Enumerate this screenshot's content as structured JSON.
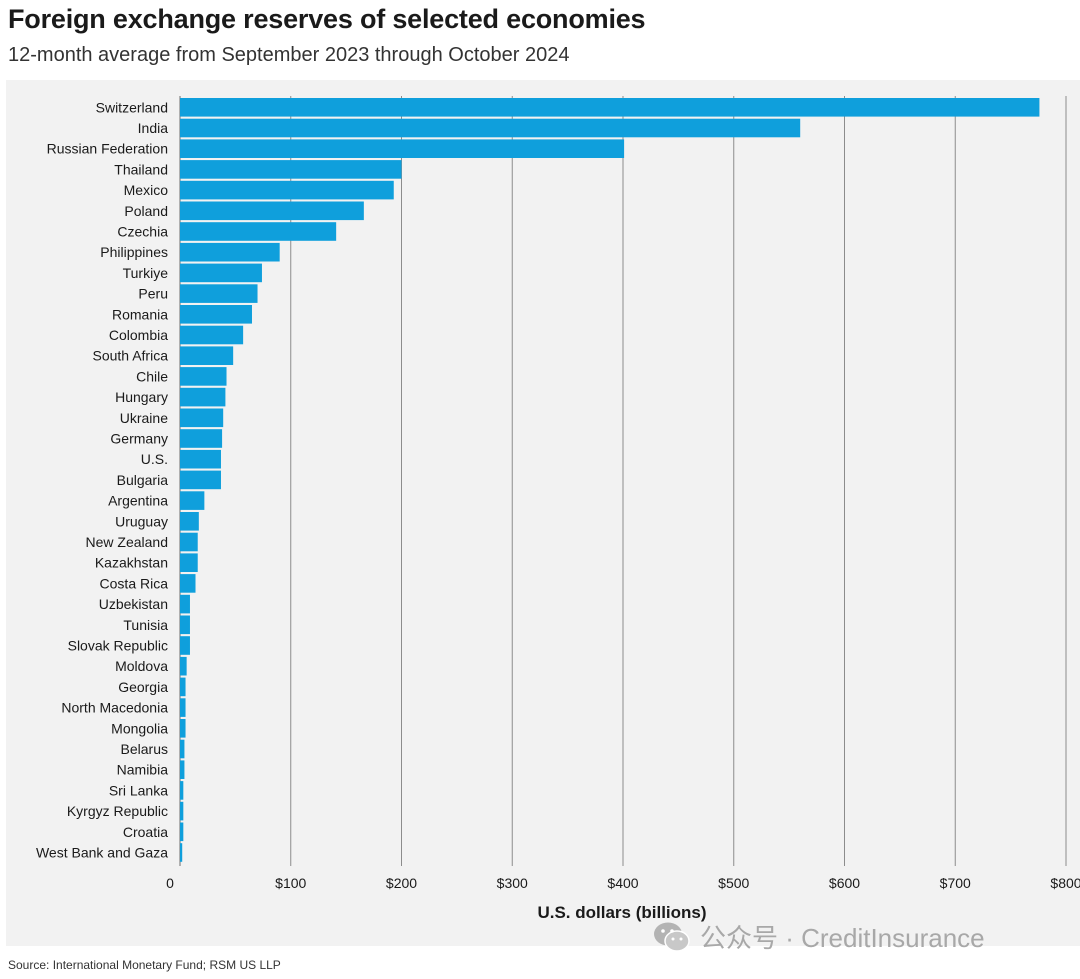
{
  "header": {
    "title": "Foreign exchange reserves of selected economies",
    "subtitle": "12-month average from September 2023 through October 2024"
  },
  "footer": {
    "source": "Source: International Monetary Fund; RSM US LLP"
  },
  "watermark": {
    "text": "公众号 · CreditInsurance",
    "icon": "wechat-icon"
  },
  "colors": {
    "bar": "#0f9fdc",
    "grid": "#8c8c8c",
    "panel": "#f2f2f2",
    "text": "#1a1a1a"
  },
  "chart_data": {
    "type": "bar",
    "orientation": "horizontal",
    "title": "Foreign exchange reserves of selected economies",
    "subtitle": "12-month average from September 2023 through October 2024",
    "xlabel": "U.S. dollars (billions)",
    "ylabel": "",
    "xlim": [
      0,
      800
    ],
    "xticks": [
      0,
      100,
      200,
      300,
      400,
      500,
      600,
      700,
      800
    ],
    "xtick_labels": [
      "0",
      "$100",
      "$200",
      "$300",
      "$400",
      "$500",
      "$600",
      "$700",
      "$800"
    ],
    "grid": "vertical",
    "categories": [
      "Switzerland",
      "India",
      "Russian Federation",
      "Thailand",
      "Mexico",
      "Poland",
      "Czechia",
      "Philippines",
      "Turkiye",
      "Peru",
      "Romania",
      "Colombia",
      "South Africa",
      "Chile",
      "Hungary",
      "Ukraine",
      "Germany",
      "U.S.",
      "Bulgaria",
      "Argentina",
      "Uruguay",
      "New Zealand",
      "Kazakhstan",
      "Costa Rica",
      "Uzbekistan",
      "Tunisia",
      "Slovak Republic",
      "Moldova",
      "Georgia",
      "North Macedonia",
      "Mongolia",
      "Belarus",
      "Namibia",
      "Sri Lanka",
      "Kyrgyz Republic",
      "Croatia",
      "West Bank and Gaza"
    ],
    "values": [
      776,
      560,
      401,
      200,
      193,
      166,
      141,
      90,
      74,
      70,
      65,
      57,
      48,
      42,
      41,
      39,
      38,
      37,
      37,
      22,
      17,
      16,
      16,
      14,
      9,
      9,
      9,
      6,
      5,
      5,
      5,
      4,
      4,
      3,
      3,
      3,
      2
    ]
  }
}
